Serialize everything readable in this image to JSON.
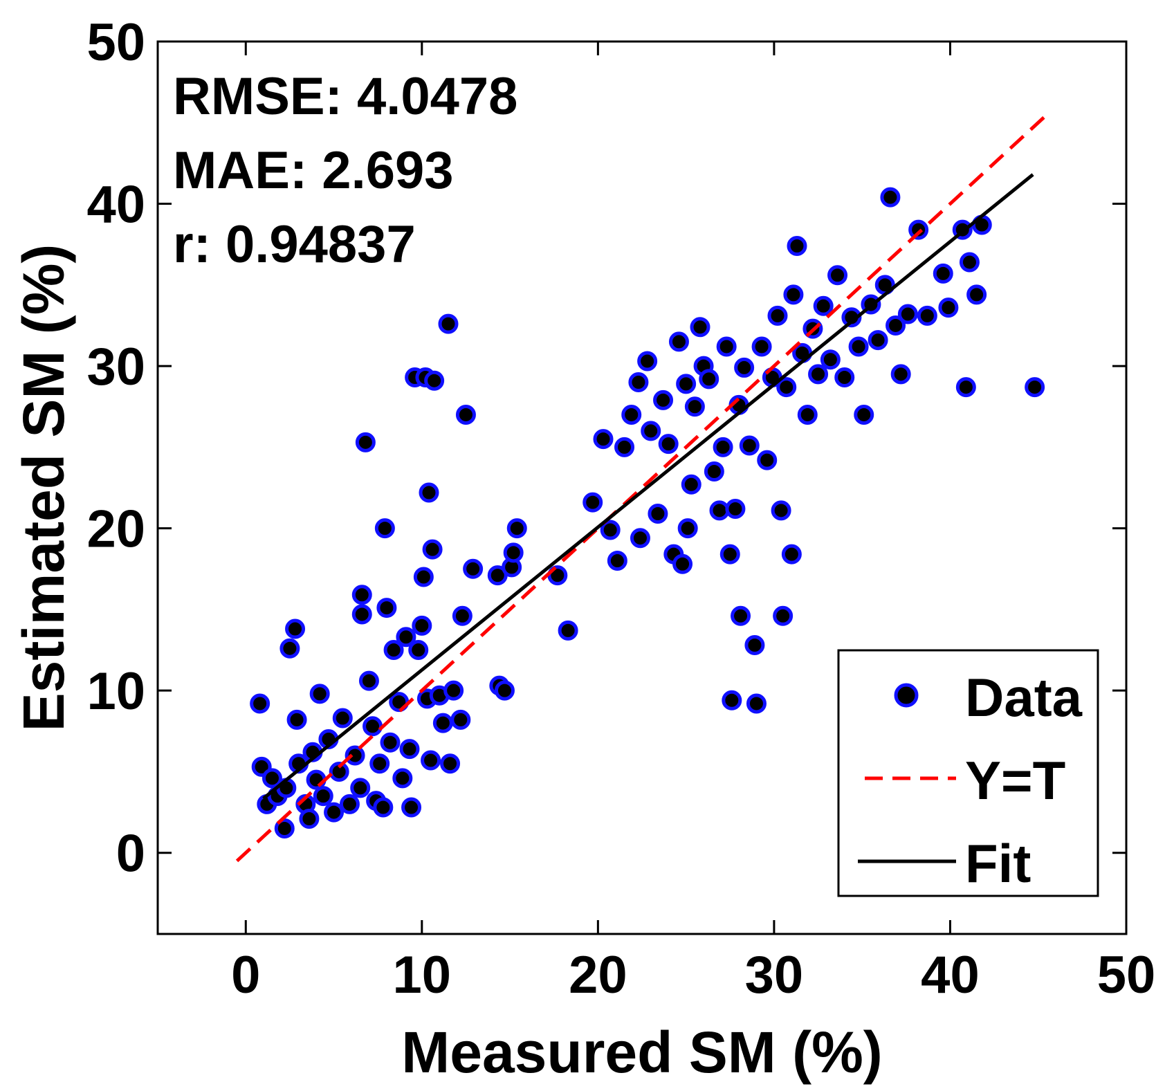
{
  "chart_data": {
    "type": "scatter",
    "title": "",
    "xlabel": "Measured SM (%)",
    "ylabel": "Estimated SM  (%)",
    "xlim": [
      -5,
      50
    ],
    "ylim": [
      -5,
      50
    ],
    "xticks": [
      0,
      10,
      20,
      30,
      40,
      50
    ],
    "yticks": [
      0,
      10,
      20,
      30,
      40,
      50
    ],
    "grid": false,
    "legend_position": "bottom-right",
    "stats": [
      "RMSE: 4.0478",
      "MAE: 2.693",
      "r: 0.94837"
    ],
    "series": [
      {
        "name": "Data",
        "kind": "scatter",
        "points": [
          [
            0.8,
            9.2
          ],
          [
            0.9,
            5.3
          ],
          [
            1.2,
            3.0
          ],
          [
            1.5,
            4.6
          ],
          [
            1.8,
            3.5
          ],
          [
            2.2,
            1.5
          ],
          [
            2.3,
            4.0
          ],
          [
            2.5,
            12.6
          ],
          [
            2.8,
            13.8
          ],
          [
            2.9,
            8.2
          ],
          [
            3.0,
            5.5
          ],
          [
            3.4,
            3.0
          ],
          [
            3.6,
            2.1
          ],
          [
            3.8,
            6.2
          ],
          [
            4.0,
            4.5
          ],
          [
            4.2,
            9.8
          ],
          [
            4.4,
            3.5
          ],
          [
            4.7,
            7.0
          ],
          [
            5.0,
            2.5
          ],
          [
            5.3,
            5.0
          ],
          [
            5.5,
            8.3
          ],
          [
            5.9,
            3.0
          ],
          [
            6.2,
            6.0
          ],
          [
            6.5,
            4.0
          ],
          [
            6.6,
            15.9
          ],
          [
            6.6,
            14.7
          ],
          [
            6.8,
            25.3
          ],
          [
            7.0,
            10.6
          ],
          [
            7.2,
            7.8
          ],
          [
            7.4,
            3.2
          ],
          [
            7.6,
            5.5
          ],
          [
            7.8,
            2.8
          ],
          [
            7.9,
            20.0
          ],
          [
            8.0,
            15.1
          ],
          [
            8.2,
            6.8
          ],
          [
            8.4,
            12.5
          ],
          [
            8.7,
            9.3
          ],
          [
            8.9,
            4.6
          ],
          [
            9.1,
            13.3
          ],
          [
            9.3,
            6.4
          ],
          [
            9.4,
            2.8
          ],
          [
            9.6,
            29.3
          ],
          [
            9.8,
            12.5
          ],
          [
            10.0,
            14.0
          ],
          [
            10.1,
            17.0
          ],
          [
            10.2,
            29.3
          ],
          [
            10.3,
            9.5
          ],
          [
            10.4,
            22.2
          ],
          [
            10.5,
            5.7
          ],
          [
            10.6,
            18.7
          ],
          [
            10.7,
            29.1
          ],
          [
            11.0,
            9.7
          ],
          [
            11.2,
            8.0
          ],
          [
            11.5,
            32.6
          ],
          [
            11.6,
            5.5
          ],
          [
            11.8,
            10.0
          ],
          [
            12.2,
            8.2
          ],
          [
            12.3,
            14.6
          ],
          [
            12.5,
            27.0
          ],
          [
            12.9,
            17.5
          ],
          [
            14.3,
            17.1
          ],
          [
            14.4,
            10.3
          ],
          [
            14.7,
            10.0
          ],
          [
            15.1,
            17.6
          ],
          [
            15.2,
            18.5
          ],
          [
            15.4,
            20.0
          ],
          [
            17.7,
            17.1
          ],
          [
            18.3,
            13.7
          ],
          [
            19.7,
            21.6
          ],
          [
            20.3,
            25.5
          ],
          [
            20.7,
            19.9
          ],
          [
            21.1,
            18.0
          ],
          [
            21.5,
            25.0
          ],
          [
            21.9,
            27.0
          ],
          [
            22.3,
            29.0
          ],
          [
            22.4,
            19.4
          ],
          [
            22.8,
            30.3
          ],
          [
            23.0,
            26.0
          ],
          [
            23.4,
            20.9
          ],
          [
            23.7,
            27.9
          ],
          [
            24.0,
            25.2
          ],
          [
            24.3,
            18.4
          ],
          [
            24.6,
            31.5
          ],
          [
            24.8,
            17.8
          ],
          [
            25.0,
            28.9
          ],
          [
            25.1,
            20.0
          ],
          [
            25.3,
            22.7
          ],
          [
            25.5,
            27.5
          ],
          [
            25.8,
            32.4
          ],
          [
            26.0,
            30.0
          ],
          [
            26.3,
            29.2
          ],
          [
            26.6,
            23.5
          ],
          [
            26.9,
            21.1
          ],
          [
            27.1,
            25.0
          ],
          [
            27.3,
            31.2
          ],
          [
            27.5,
            18.4
          ],
          [
            27.6,
            9.4
          ],
          [
            27.8,
            21.2
          ],
          [
            28.0,
            27.6
          ],
          [
            28.1,
            14.6
          ],
          [
            28.3,
            29.9
          ],
          [
            28.6,
            25.1
          ],
          [
            28.9,
            12.8
          ],
          [
            29.0,
            9.2
          ],
          [
            29.3,
            31.2
          ],
          [
            29.6,
            24.2
          ],
          [
            29.9,
            29.3
          ],
          [
            30.2,
            33.1
          ],
          [
            30.4,
            21.1
          ],
          [
            30.5,
            14.6
          ],
          [
            30.7,
            28.7
          ],
          [
            31.0,
            18.4
          ],
          [
            31.1,
            34.4
          ],
          [
            31.3,
            37.4
          ],
          [
            31.6,
            30.8
          ],
          [
            31.9,
            27.0
          ],
          [
            32.2,
            32.3
          ],
          [
            32.5,
            29.5
          ],
          [
            32.8,
            33.7
          ],
          [
            33.2,
            30.4
          ],
          [
            33.6,
            35.6
          ],
          [
            34.0,
            29.3
          ],
          [
            34.4,
            33.0
          ],
          [
            34.8,
            31.2
          ],
          [
            35.1,
            27.0
          ],
          [
            35.5,
            33.8
          ],
          [
            35.9,
            31.6
          ],
          [
            36.3,
            35.0
          ],
          [
            36.6,
            40.4
          ],
          [
            36.9,
            32.5
          ],
          [
            37.2,
            29.5
          ],
          [
            37.6,
            33.2
          ],
          [
            38.2,
            38.4
          ],
          [
            38.7,
            33.1
          ],
          [
            39.6,
            35.7
          ],
          [
            39.9,
            33.6
          ],
          [
            40.7,
            38.4
          ],
          [
            40.9,
            28.7
          ],
          [
            41.1,
            36.4
          ],
          [
            41.5,
            34.4
          ],
          [
            41.8,
            38.7
          ],
          [
            44.8,
            28.7
          ]
        ]
      },
      {
        "name": "Y=T",
        "kind": "line",
        "style": "dashed",
        "points": [
          [
            -0.5,
            -0.5
          ],
          [
            45.5,
            45.5
          ]
        ]
      },
      {
        "name": "Fit",
        "kind": "line",
        "style": "solid",
        "points": [
          [
            1.0,
            3.35
          ],
          [
            44.7,
            41.8
          ]
        ]
      }
    ],
    "colors": {
      "marker_face": "#000000",
      "marker_edge": "#1010ff",
      "yt_line": "#ff0000",
      "fit_line": "#000000",
      "axes": "#000000"
    }
  }
}
